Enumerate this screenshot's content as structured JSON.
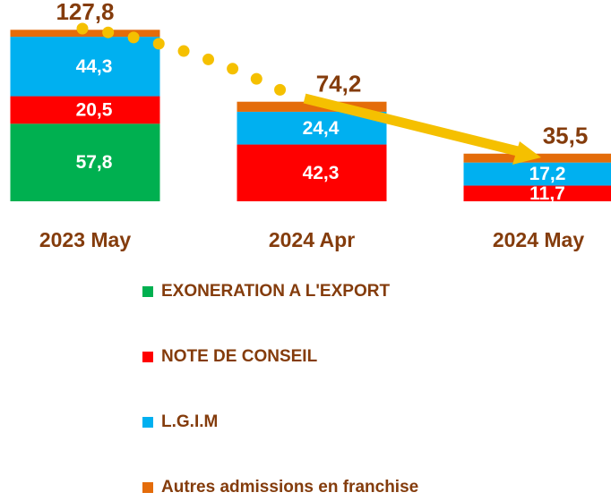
{
  "chart_data": {
    "type": "bar",
    "stacked": true,
    "categories": [
      "2023 May",
      "2024 Apr",
      "2024 May"
    ],
    "series": [
      {
        "name": "EXONERATION A L'EXPORT",
        "color": "#00b050",
        "values": [
          57.8,
          null,
          null
        ],
        "value_labels": [
          "57,8",
          null,
          null
        ]
      },
      {
        "name": "NOTE DE CONSEIL",
        "color": "#ff0000",
        "values": [
          20.5,
          42.3,
          11.7
        ],
        "value_labels": [
          "20,5",
          "42,3",
          "11,7"
        ]
      },
      {
        "name": "L.G.I.M",
        "color": "#00b0f0",
        "values": [
          44.3,
          24.4,
          17.2
        ],
        "value_labels": [
          "44,3",
          "24,4",
          "17,2"
        ]
      },
      {
        "name": "Autres admissions en franchise",
        "color": "#e46c0a",
        "values": [
          5.2,
          7.5,
          6.6
        ]
      }
    ],
    "totals": [
      127.8,
      74.2,
      35.5
    ],
    "total_labels": [
      "127,8",
      "74,2",
      "35,5"
    ],
    "ylim": [
      0,
      130
    ]
  }
}
